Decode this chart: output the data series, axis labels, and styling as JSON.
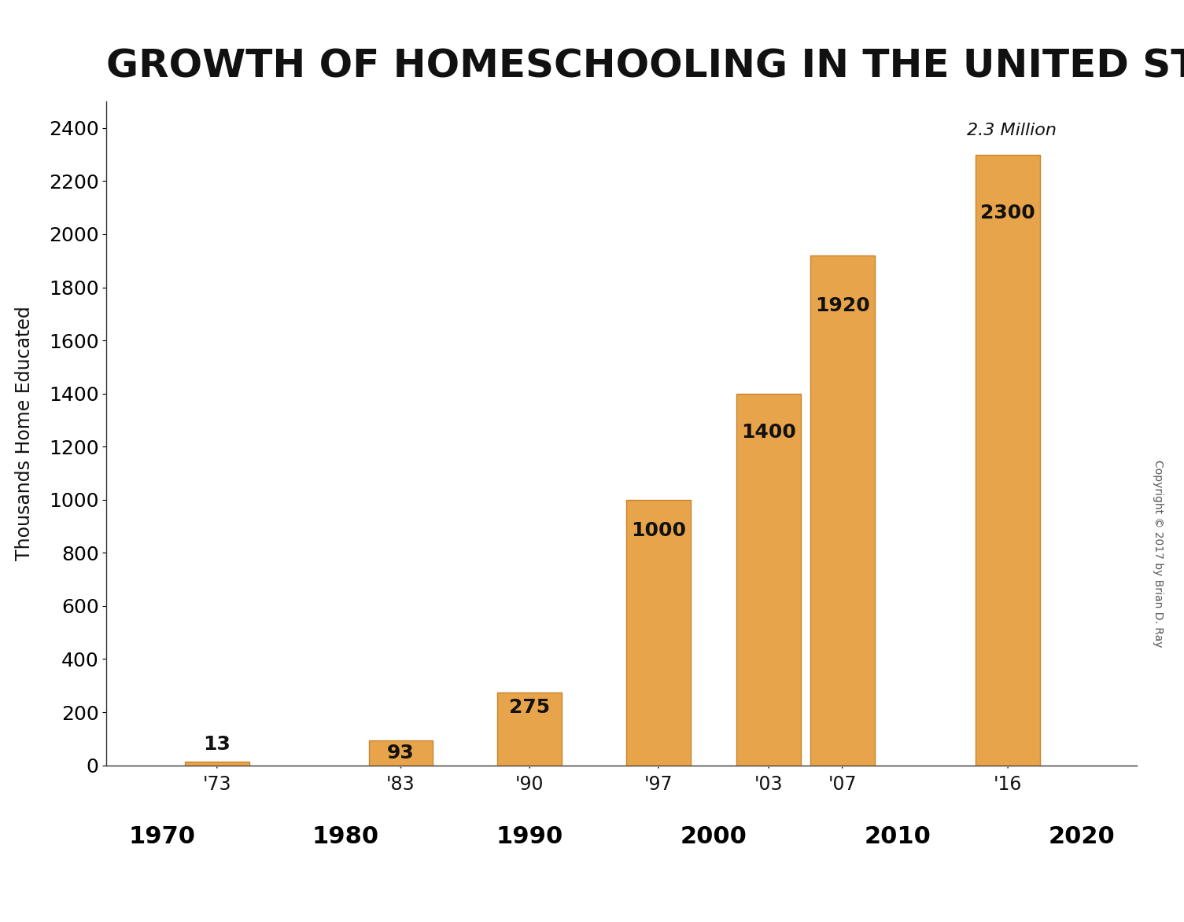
{
  "title": "GROWTH OF HOMESCHOOLING IN THE UNITED STATES",
  "ylabel": "Thousands Home Educated",
  "bar_labels": [
    "'73",
    "'83",
    "'90",
    "'97",
    "'03",
    "'07",
    "'16"
  ],
  "bar_values": [
    13,
    93,
    275,
    1000,
    1400,
    1920,
    2300
  ],
  "bar_positions": [
    1973,
    1983,
    1990,
    1997,
    2003,
    2007,
    2016
  ],
  "bar_color": "#E8A44A",
  "bar_edge_color": "#C8842A",
  "bar_width": 3.5,
  "xlim": [
    1967,
    2023
  ],
  "ylim": [
    0,
    2500
  ],
  "yticks": [
    0,
    200,
    400,
    600,
    800,
    1000,
    1200,
    1400,
    1600,
    1800,
    2000,
    2200,
    2400
  ],
  "xtick_decades": [
    1970,
    1980,
    1990,
    2000,
    2010,
    2020
  ],
  "annotation_2_3_million": "2.3 Million",
  "copyright_text": "Copyright © 2017 by Brian D. Ray",
  "title_fontsize": 36,
  "ylabel_fontsize": 17,
  "bar_label_fontsize": 18,
  "tick_fontsize": 18,
  "decade_fontsize": 22,
  "annotation_fontsize": 16,
  "copyright_fontsize": 10,
  "background_color": "#FFFFFF"
}
